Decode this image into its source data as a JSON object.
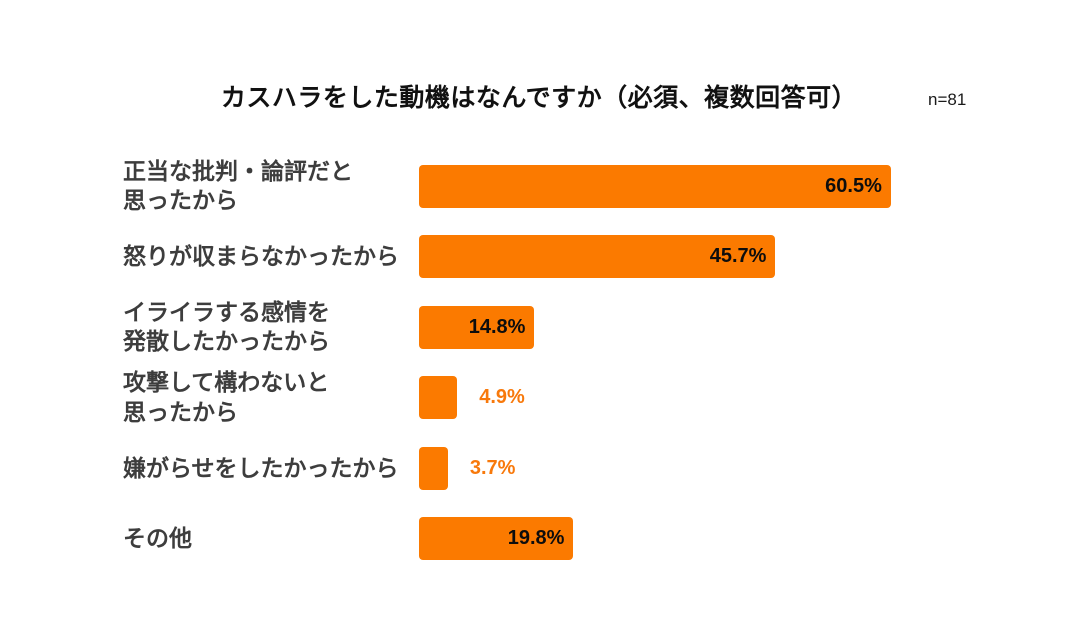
{
  "header": {
    "title": "カスハラをした動機はなんですか（必須、複数回答可）",
    "sample_size": "n=81"
  },
  "chart_data": {
    "type": "bar",
    "orientation": "horizontal",
    "title": "カスハラをした動機はなんですか（必須、複数回答可）",
    "sample_size": "n=81",
    "categories": [
      "正当な批判・論評だと\n思ったから",
      "怒りが収まらなかったから",
      "イライラする感情を\n発散したかったから",
      "攻撃して構わないと\n思ったから",
      "嫌がらせをしたかったから",
      "その他"
    ],
    "values": [
      60.5,
      45.7,
      14.8,
      4.9,
      3.7,
      19.8
    ],
    "value_labels": [
      "60.5%",
      "45.7%",
      "14.8%",
      "4.9%",
      "3.7%",
      "19.8%"
    ],
    "value_suffix": "%",
    "xlim": [
      0,
      80
    ],
    "grid": false,
    "legend": "none",
    "colors": {
      "bar": "#FB7A00",
      "inside_value_label": "#0d0d0d",
      "outside_value_label": "#F8790B",
      "category_label": "#3d3d3d",
      "title": "#111111",
      "background": "#ffffff"
    }
  }
}
